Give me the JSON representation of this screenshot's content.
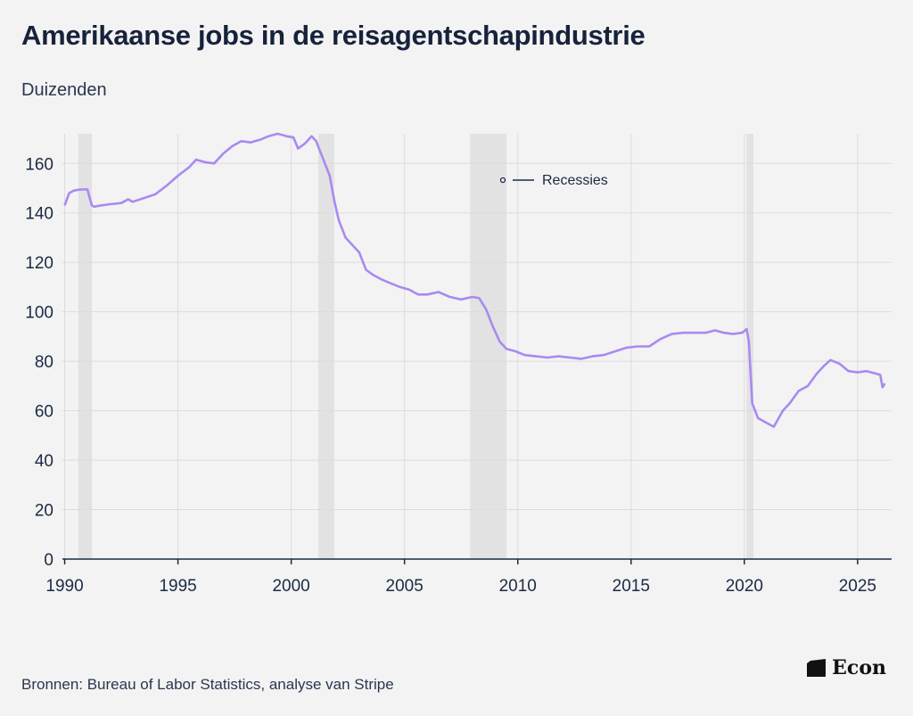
{
  "header": {
    "title": "Amerikaanse jobs in de reisagentschapindustrie",
    "subtitle": "Duizenden"
  },
  "footer": {
    "source": "Bronnen: Bureau of Labor Statistics, analyse van Stripe",
    "logo": "Econ"
  },
  "colors": {
    "line": "#a98af0",
    "recession": "#e2e2e2",
    "grid": "#dcdcdc",
    "axis": "#1b2a44"
  },
  "chart_data": {
    "type": "line",
    "title": "Amerikaanse jobs in de reisagentschapindustrie",
    "ylabel": "Duizenden",
    "xlim": [
      1989.9,
      2026.5
    ],
    "ylim": [
      0,
      172
    ],
    "yticks": [
      0,
      20,
      40,
      60,
      80,
      100,
      120,
      140,
      160
    ],
    "xticks": [
      1990,
      1995,
      2000,
      2005,
      2010,
      2015,
      2020,
      2025
    ],
    "grid": true,
    "legend": {
      "position": "top-center",
      "entries": [
        "Recessies"
      ]
    },
    "recessions": [
      [
        1990.6,
        1991.2
      ],
      [
        2001.2,
        2001.9
      ],
      [
        2007.9,
        2009.5
      ],
      [
        2020.1,
        2020.4
      ]
    ],
    "series": [
      {
        "name": "",
        "x": [
          1990.0,
          1990.2,
          1990.4,
          1990.7,
          1991.0,
          1991.2,
          1991.3,
          1991.6,
          1992.0,
          1992.5,
          1992.8,
          1993.0,
          1993.5,
          1994.0,
          1994.5,
          1995.0,
          1995.5,
          1995.8,
          1996.2,
          1996.6,
          1997.0,
          1997.4,
          1997.8,
          1998.2,
          1998.6,
          1999.0,
          1999.4,
          1999.8,
          2000.1,
          2000.3,
          2000.6,
          2000.9,
          2001.1,
          2001.4,
          2001.7,
          2001.9,
          2002.1,
          2002.4,
          2002.7,
          2003.0,
          2003.3,
          2003.6,
          2004.0,
          2004.4,
          2004.8,
          2005.2,
          2005.6,
          2006.0,
          2006.5,
          2007.0,
          2007.5,
          2008.0,
          2008.3,
          2008.6,
          2008.9,
          2009.2,
          2009.5,
          2009.9,
          2010.3,
          2010.8,
          2011.3,
          2011.8,
          2012.3,
          2012.8,
          2013.3,
          2013.8,
          2014.3,
          2014.8,
          2015.3,
          2015.8,
          2016.3,
          2016.8,
          2017.3,
          2017.8,
          2018.3,
          2018.7,
          2019.1,
          2019.5,
          2019.9,
          2020.1,
          2020.2,
          2020.35,
          2020.6,
          2021.0,
          2021.3,
          2021.7,
          2022.0,
          2022.4,
          2022.8,
          2023.2,
          2023.5,
          2023.8,
          2024.2,
          2024.6,
          2025.0,
          2025.4,
          2025.8,
          2026.0,
          2026.1,
          2026.2
        ],
        "y": [
          143,
          148,
          149,
          149.5,
          149.5,
          143,
          142.5,
          143,
          143.5,
          144,
          145.5,
          144.5,
          146,
          147.5,
          151,
          155,
          158.5,
          161.5,
          160.5,
          160,
          164,
          167,
          169,
          168.5,
          169.5,
          171,
          172,
          171,
          170.5,
          166,
          168,
          171,
          169,
          162,
          155,
          145,
          137,
          130,
          127,
          124,
          117,
          115,
          113,
          111.5,
          110,
          109,
          107,
          107,
          108,
          106,
          105,
          106,
          105.5,
          101,
          94,
          88,
          85,
          84,
          82.5,
          82,
          81.5,
          82,
          81.5,
          81,
          82,
          82.5,
          84,
          85.5,
          86,
          86,
          89,
          91,
          91.5,
          91.5,
          91.5,
          92.5,
          91.5,
          91,
          91.5,
          93,
          88,
          63,
          57,
          55,
          53.5,
          60,
          63,
          68,
          70,
          75,
          78,
          80.5,
          79,
          76,
          75.5,
          76,
          75,
          74.5,
          69.5,
          71
        ]
      }
    ]
  }
}
